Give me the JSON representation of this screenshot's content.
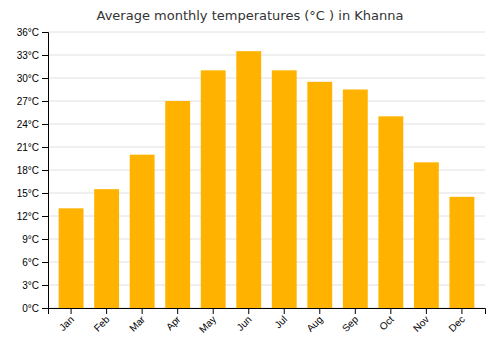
{
  "chart_data": {
    "type": "bar",
    "title": "Average monthly temperatures (°C ) in Khanna",
    "categories": [
      "Jan",
      "Feb",
      "Mar",
      "Apr",
      "May",
      "Jun",
      "Jul",
      "Aug",
      "Sep",
      "Oct",
      "Nov",
      "Dec"
    ],
    "values": [
      13.0,
      15.5,
      20.0,
      27.0,
      31.0,
      33.5,
      31.0,
      29.5,
      28.5,
      25.0,
      19.0,
      14.5
    ],
    "color": "#FFB300",
    "ylim": [
      0,
      36
    ],
    "yticks": [
      {
        "value": 0,
        "label": "0°C"
      },
      {
        "value": 3,
        "label": "3°C"
      },
      {
        "value": 6,
        "label": "6°C"
      },
      {
        "value": 9,
        "label": "9°C"
      },
      {
        "value": 12,
        "label": "12°C"
      },
      {
        "value": 15,
        "label": "15°C"
      },
      {
        "value": 18,
        "label": "18°C"
      },
      {
        "value": 21,
        "label": "21°C"
      },
      {
        "value": 24,
        "label": "24°C"
      },
      {
        "value": 27,
        "label": "27°C"
      },
      {
        "value": 30,
        "label": "30°C"
      },
      {
        "value": 33,
        "label": "33°C"
      },
      {
        "value": 36,
        "label": "36°C"
      }
    ],
    "grid": true
  }
}
